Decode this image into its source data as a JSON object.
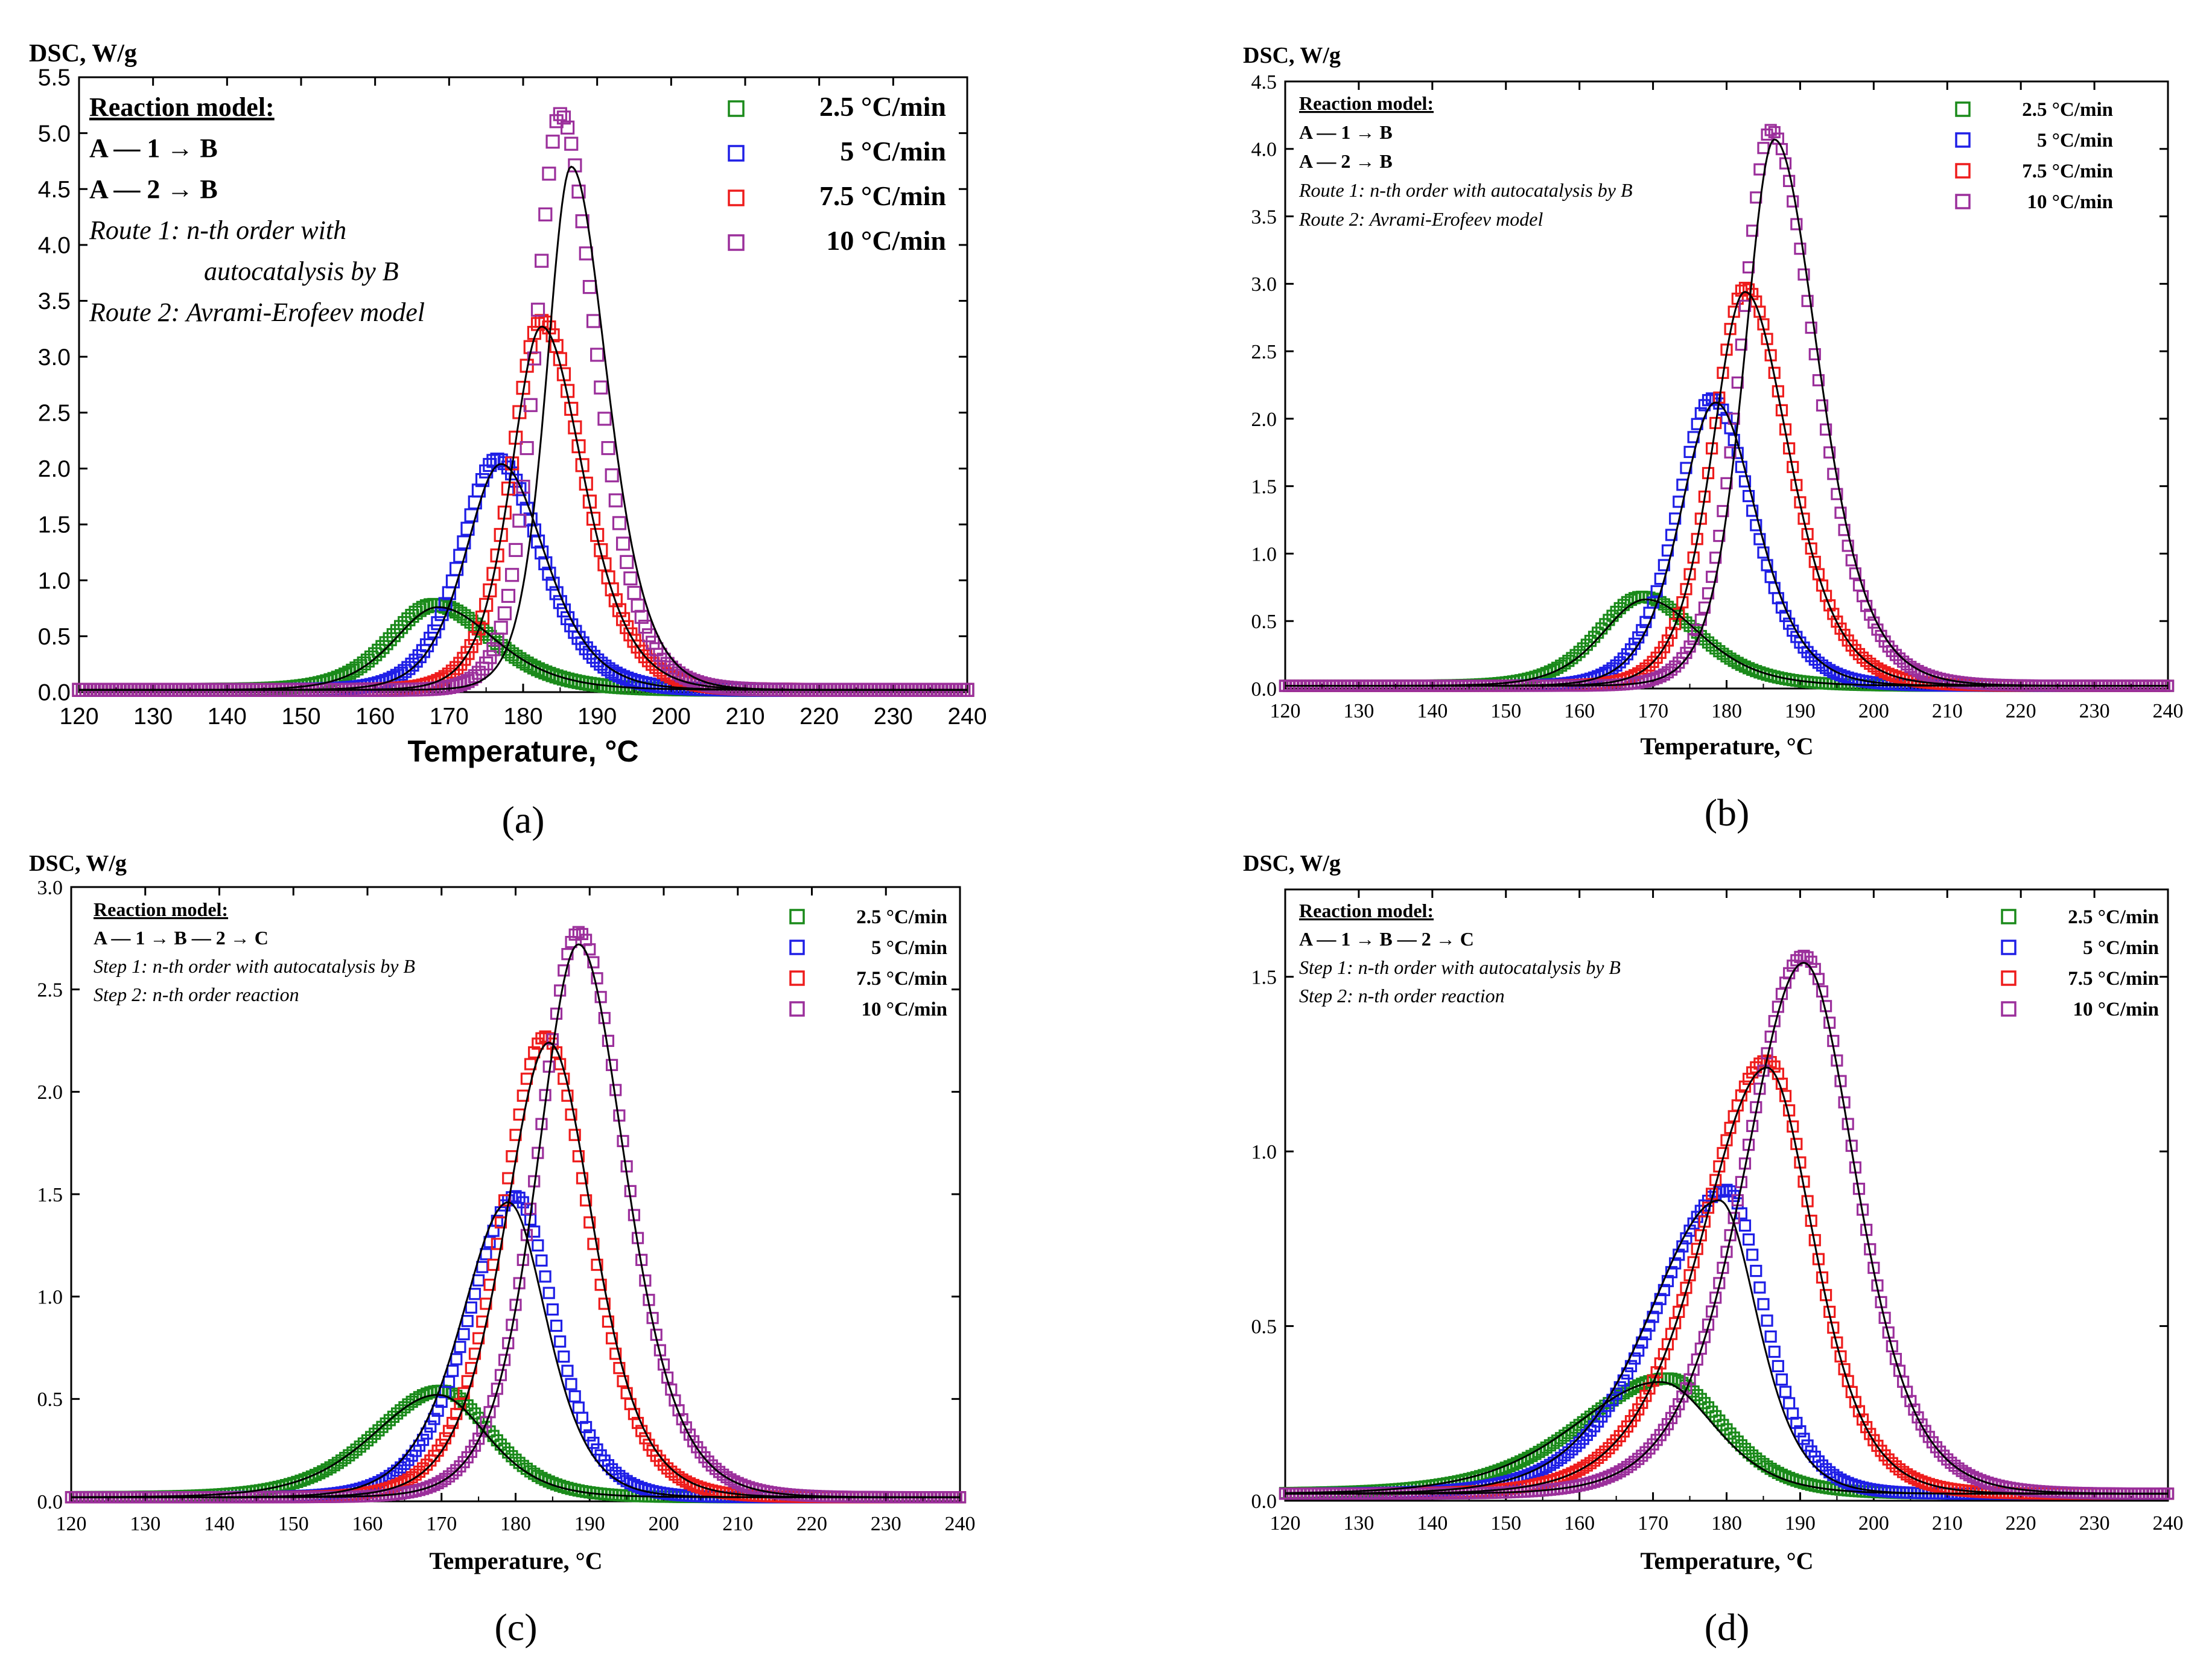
{
  "figure": {
    "panel_labels": [
      "(a)",
      "(b)",
      "(c)",
      "(d)"
    ]
  },
  "colors": {
    "green": "#1a8a1a",
    "blue": "#1f1fe6",
    "red": "#ee1c1c",
    "purple": "#9b2f9b",
    "fit": "#000000"
  },
  "chart_data": [
    {
      "type": "scatter",
      "panel": "(a)",
      "ylabel": "DSC, W/g",
      "xlabel": "Temperature, °C",
      "xlim": [
        120,
        240
      ],
      "ylim": [
        0,
        5.5
      ],
      "xticks": [
        120,
        130,
        140,
        150,
        160,
        170,
        180,
        190,
        200,
        210,
        220,
        230,
        240
      ],
      "yticks": [
        0.0,
        0.5,
        1.0,
        1.5,
        2.0,
        2.5,
        3.0,
        3.5,
        4.0,
        4.5,
        5.0,
        5.5
      ],
      "ytick_labels": [
        "0.0",
        "0.5",
        "1.0",
        "1.5",
        "2.0",
        "2.5",
        "3.0",
        "3.5",
        "4.0",
        "4.5",
        "5.0",
        "5.5"
      ],
      "model_lines": [
        "Reaction model:",
        "A — 1 → B",
        "A — 2 → B",
        "Route 1: n-th order with",
        "autocatalysis by B",
        "Route 2: Avrami-Erofeev model"
      ],
      "legend": [
        "2.5 °C/min",
        "5 °C/min",
        "7.5 °C/min",
        "10 °C/min"
      ],
      "series": [
        {
          "name": "2.5 °C/min",
          "color_key": "green",
          "peak_x": 168,
          "peak_y": 0.76,
          "w_left": 8,
          "w_right": 10.5
        },
        {
          "name": "5 °C/min",
          "color_key": "blue",
          "peak_x": 176.5,
          "peak_y": 2.06,
          "w_left": 6.5,
          "w_right": 8
        },
        {
          "name": "7.5 °C/min",
          "color_key": "red",
          "peak_x": 182.5,
          "peak_y": 3.3,
          "w_left": 5.5,
          "w_right": 7.5
        },
        {
          "name": "10 °C/min",
          "color_key": "purple",
          "peak_x": 185,
          "peak_y": 5.15,
          "w_left": 4.5,
          "w_right": 6.5
        }
      ],
      "fits": [
        {
          "peak_x": 168.5,
          "peak_y": 0.74,
          "w_left": 8,
          "w_right": 10.5
        },
        {
          "peak_x": 177,
          "peak_y": 2.02,
          "w_left": 6.5,
          "w_right": 8
        },
        {
          "peak_x": 182.5,
          "peak_y": 3.25,
          "w_left": 5.5,
          "w_right": 7.5
        },
        {
          "peak_x": 186.5,
          "peak_y": 4.68,
          "w_left": 4.5,
          "w_right": 6.5
        }
      ]
    },
    {
      "type": "scatter",
      "panel": "(b)",
      "ylabel": "DSC, W/g",
      "xlabel": "Temperature, °C",
      "xlim": [
        120,
        240
      ],
      "ylim": [
        0,
        4.5
      ],
      "xticks": [
        120,
        130,
        140,
        150,
        160,
        170,
        180,
        190,
        200,
        210,
        220,
        230,
        240
      ],
      "yticks": [
        0.0,
        0.5,
        1.0,
        1.5,
        2.0,
        2.5,
        3.0,
        3.5,
        4.0,
        4.5
      ],
      "ytick_labels": [
        "0.0",
        "0.5",
        "1.0",
        "1.5",
        "2.0",
        "2.5",
        "3.0",
        "3.5",
        "4.0",
        "4.5"
      ],
      "model_lines": [
        "Reaction model:",
        "A — 1 → B",
        "A — 2 → B",
        "Route 1: n-th order with autocatalysis by B",
        "Route 2: Avrami-Erofeev model"
      ],
      "legend": [
        "2.5 °C/min",
        "5 °C/min",
        "7.5 °C/min",
        "10 °C/min"
      ],
      "series": [
        {
          "name": "2.5 °C/min",
          "color_key": "green",
          "peak_x": 168.5,
          "peak_y": 0.66,
          "w_left": 8,
          "w_right": 10
        },
        {
          "name": "5 °C/min",
          "color_key": "blue",
          "peak_x": 178,
          "peak_y": 2.13,
          "w_left": 6.5,
          "w_right": 7.5
        },
        {
          "name": "7.5 °C/min",
          "color_key": "red",
          "peak_x": 182.5,
          "peak_y": 2.95,
          "w_left": 6,
          "w_right": 8
        },
        {
          "name": "10 °C/min",
          "color_key": "purple",
          "peak_x": 186,
          "peak_y": 4.12,
          "w_left": 5.5,
          "w_right": 8
        }
      ],
      "fits": [
        {
          "peak_x": 169,
          "peak_y": 0.64,
          "w_left": 8,
          "w_right": 10
        },
        {
          "peak_x": 178.5,
          "peak_y": 2.1,
          "w_left": 6.5,
          "w_right": 7.5
        },
        {
          "peak_x": 182.5,
          "peak_y": 2.92,
          "w_left": 6,
          "w_right": 8
        },
        {
          "peak_x": 186.5,
          "peak_y": 4.05,
          "w_left": 5.5,
          "w_right": 8
        }
      ]
    },
    {
      "type": "scatter",
      "panel": "(c)",
      "ylabel": "DSC, W/g",
      "xlabel": "Temperature, °C",
      "xlim": [
        120,
        240
      ],
      "ylim": [
        0,
        3.0
      ],
      "xticks": [
        120,
        130,
        140,
        150,
        160,
        170,
        180,
        190,
        200,
        210,
        220,
        230,
        240
      ],
      "yticks": [
        0.0,
        0.5,
        1.0,
        1.5,
        2.0,
        2.5,
        3.0
      ],
      "ytick_labels": [
        "0.0",
        "0.5",
        "1.0",
        "1.5",
        "2.0",
        "2.5",
        "3.0"
      ],
      "model_lines": [
        "Reaction model:",
        "A — 1 → B — 2 → C",
        "Step 1: n-th order with autocatalysis by B",
        "Step 2: n-th order reaction"
      ],
      "legend": [
        "2.5 °C/min",
        "5 °C/min",
        "7.5 °C/min",
        "10 °C/min"
      ],
      "series": [
        {
          "name": "2.5 °C/min",
          "color_key": "green",
          "peak_x": 170,
          "peak_y": 0.52,
          "w_left": 12,
          "w_right": 9
        },
        {
          "name": "5 °C/min",
          "color_key": "blue",
          "peak_x": 180,
          "peak_y": 1.47,
          "w_left": 8.5,
          "w_right": 7
        },
        {
          "name": "7.5 °C/min",
          "color_key": "red",
          "peak_x": 184,
          "peak_y": 2.25,
          "w_left": 8,
          "w_right": 8
        },
        {
          "name": "10 °C/min",
          "color_key": "purple",
          "peak_x": 188.5,
          "peak_y": 2.76,
          "w_left": 7.5,
          "w_right": 8.5
        }
      ],
      "fits": [
        {
          "peak_x": 169.5,
          "peak_y": 0.5,
          "w_left": 12,
          "w_right": 9
        },
        {
          "peak_x": 179,
          "peak_y": 1.44,
          "w_left": 8.5,
          "w_right": 7
        },
        {
          "peak_x": 184.5,
          "peak_y": 2.22,
          "w_left": 8,
          "w_right": 8
        },
        {
          "peak_x": 188.5,
          "peak_y": 2.7,
          "w_left": 7.5,
          "w_right": 8.5
        }
      ]
    },
    {
      "type": "scatter",
      "panel": "(d)",
      "ylabel": "DSC, W/g",
      "xlabel": "Temperature, °C",
      "xlim": [
        120,
        240
      ],
      "ylim": [
        0,
        1.75
      ],
      "xticks": [
        120,
        130,
        140,
        150,
        160,
        170,
        180,
        190,
        200,
        210,
        220,
        230,
        240
      ],
      "yticks": [
        0.0,
        0.5,
        1.0,
        1.5
      ],
      "ytick_labels": [
        "0.0",
        "0.5",
        "1.0",
        "1.5"
      ],
      "model_lines": [
        "Reaction model:",
        "A — 1 → B — 2 → C",
        "Step 1: n-th order with autocatalysis by B",
        "Step 2: n-th order reaction"
      ],
      "legend": [
        "2.5 °C/min",
        "5 °C/min",
        "7.5 °C/min",
        "10 °C/min"
      ],
      "series": [
        {
          "name": "2.5 °C/min",
          "color_key": "green",
          "peak_x": 172,
          "peak_y": 0.33,
          "w_left": 16,
          "w_right": 10
        },
        {
          "name": "5 °C/min",
          "color_key": "blue",
          "peak_x": 180,
          "peak_y": 0.87,
          "w_left": 13,
          "w_right": 7
        },
        {
          "name": "7.5 °C/min",
          "color_key": "red",
          "peak_x": 185.5,
          "peak_y": 1.24,
          "w_left": 12,
          "w_right": 8.5
        },
        {
          "name": "10 °C/min",
          "color_key": "purple",
          "peak_x": 190.5,
          "peak_y": 1.54,
          "w_left": 11,
          "w_right": 9.5
        }
      ],
      "fits": [
        {
          "peak_x": 171,
          "peak_y": 0.32,
          "w_left": 16,
          "w_right": 10
        },
        {
          "peak_x": 179,
          "peak_y": 0.84,
          "w_left": 13,
          "w_right": 7
        },
        {
          "peak_x": 185.5,
          "peak_y": 1.22,
          "w_left": 12,
          "w_right": 8.5
        },
        {
          "peak_x": 190.5,
          "peak_y": 1.52,
          "w_left": 11,
          "w_right": 9.5
        }
      ]
    }
  ]
}
